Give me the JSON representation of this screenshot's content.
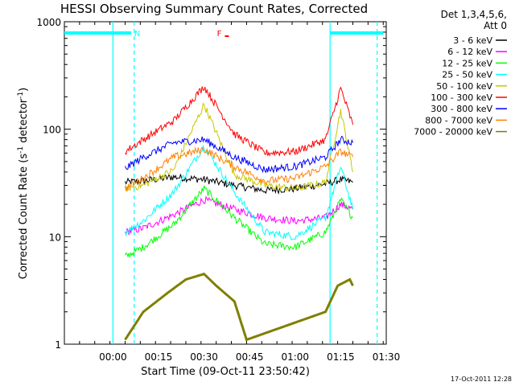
{
  "chart_data": {
    "type": "line",
    "title": "HESSI Observing Summary Count Rates, Corrected",
    "xlabel": "Start Time (09-Oct-11 23:50:42)",
    "ylabel_main": "Corrected Count Rate (s",
    "ylabel_sup1": "-1",
    "ylabel_mid": " detector",
    "ylabel_sup2": "-1",
    "ylabel_end": ")",
    "y_scale": "log",
    "ylim": [
      1,
      1000
    ],
    "x_unit": "minutes after 23:50:42",
    "xlim": [
      -6,
      100
    ],
    "x_tick_values": [
      10,
      25,
      40,
      55,
      70,
      85,
      100
    ],
    "x_tick_labels": [
      "00:00",
      "00:15",
      "00:30",
      "00:45",
      "01:00",
      "01:15",
      "01:30"
    ],
    "y_tick_values": [
      1,
      10,
      100,
      1000
    ],
    "y_tick_labels": [
      "1",
      "10",
      "100",
      "1000"
    ],
    "legend_header": [
      "Det 1,3,4,5,6,",
      "Att 0"
    ],
    "legend_placement": "right, outside plot",
    "series": [
      {
        "name": "3 - 6 keV",
        "color": "#000000",
        "x": [
          14,
          20,
          30,
          40,
          50,
          60,
          70,
          80,
          85,
          89
        ],
        "y": [
          32,
          33,
          36,
          34,
          30,
          27,
          28,
          31,
          34,
          32
        ]
      },
      {
        "name": "6 - 12 keV",
        "color": "#ff00ff",
        "x": [
          14,
          20,
          30,
          40,
          50,
          60,
          70,
          80,
          85,
          89
        ],
        "y": [
          11,
          12,
          16,
          22,
          18,
          15,
          14,
          15,
          20,
          18
        ]
      },
      {
        "name": "12 - 25 keV",
        "color": "#00ff00",
        "x": [
          14,
          20,
          30,
          40,
          50,
          60,
          70,
          80,
          85,
          89
        ],
        "y": [
          6.5,
          8,
          13,
          28,
          15,
          8.5,
          8,
          11,
          22,
          15
        ]
      },
      {
        "name": "25 - 50 keV",
        "color": "#00ffff",
        "x": [
          14,
          20,
          30,
          40,
          50,
          60,
          70,
          80,
          85,
          89
        ],
        "y": [
          11,
          14,
          26,
          70,
          26,
          11,
          10,
          15,
          45,
          18
        ]
      },
      {
        "name": "50 - 100 keV",
        "color": "#c8c800",
        "x": [
          14,
          20,
          30,
          40,
          50,
          60,
          70,
          80,
          85,
          89
        ],
        "y": [
          28,
          30,
          42,
          170,
          38,
          30,
          28,
          32,
          150,
          40
        ]
      },
      {
        "name": "100 - 300 keV",
        "color": "#ff0000",
        "x": [
          14,
          20,
          30,
          40,
          50,
          60,
          70,
          80,
          85,
          89
        ],
        "y": [
          62,
          80,
          120,
          250,
          90,
          60,
          62,
          80,
          240,
          110
        ]
      },
      {
        "name": "300 - 800 keV",
        "color": "#0000ff",
        "x": [
          14,
          20,
          30,
          40,
          50,
          60,
          70,
          80,
          85,
          89
        ],
        "y": [
          43,
          55,
          75,
          80,
          55,
          42,
          45,
          55,
          80,
          75
        ]
      },
      {
        "name": "800 - 7000 keV",
        "color": "#ff7f00",
        "x": [
          14,
          20,
          30,
          40,
          50,
          60,
          70,
          80,
          85,
          89
        ],
        "y": [
          28,
          35,
          55,
          65,
          45,
          33,
          35,
          45,
          62,
          55
        ]
      },
      {
        "name": "7000 - 20000 keV",
        "color": "#7f7f00",
        "x": [
          14,
          20,
          28,
          34,
          40,
          44,
          50,
          54,
          80,
          84,
          88,
          89
        ],
        "y": [
          1.1,
          2,
          3,
          4,
          4.5,
          3.5,
          2.5,
          1.1,
          2,
          3.5,
          4,
          3.5
        ]
      }
    ],
    "vertical_lines": [
      {
        "x": 10,
        "style": "solid",
        "color": "#00ffff"
      },
      {
        "x": 17,
        "style": "dashed",
        "color": "#00ffff"
      },
      {
        "x": 81.5,
        "style": "solid",
        "color": "#00ffff"
      },
      {
        "x": 97,
        "style": "dashed",
        "color": "#00ffff"
      }
    ],
    "top_bars": [
      {
        "x_start": -6,
        "x_end": 16,
        "color": "#00ffff"
      },
      {
        "x_start": 81.5,
        "x_end": 99,
        "color": "#00ffff"
      }
    ],
    "annotations": [
      {
        "text": "N",
        "x": 18,
        "color": "#00ffff"
      },
      {
        "text": "F",
        "x": 45,
        "color": "#ff0000"
      }
    ],
    "footer_date": "17-Oct-2011 12:28"
  }
}
